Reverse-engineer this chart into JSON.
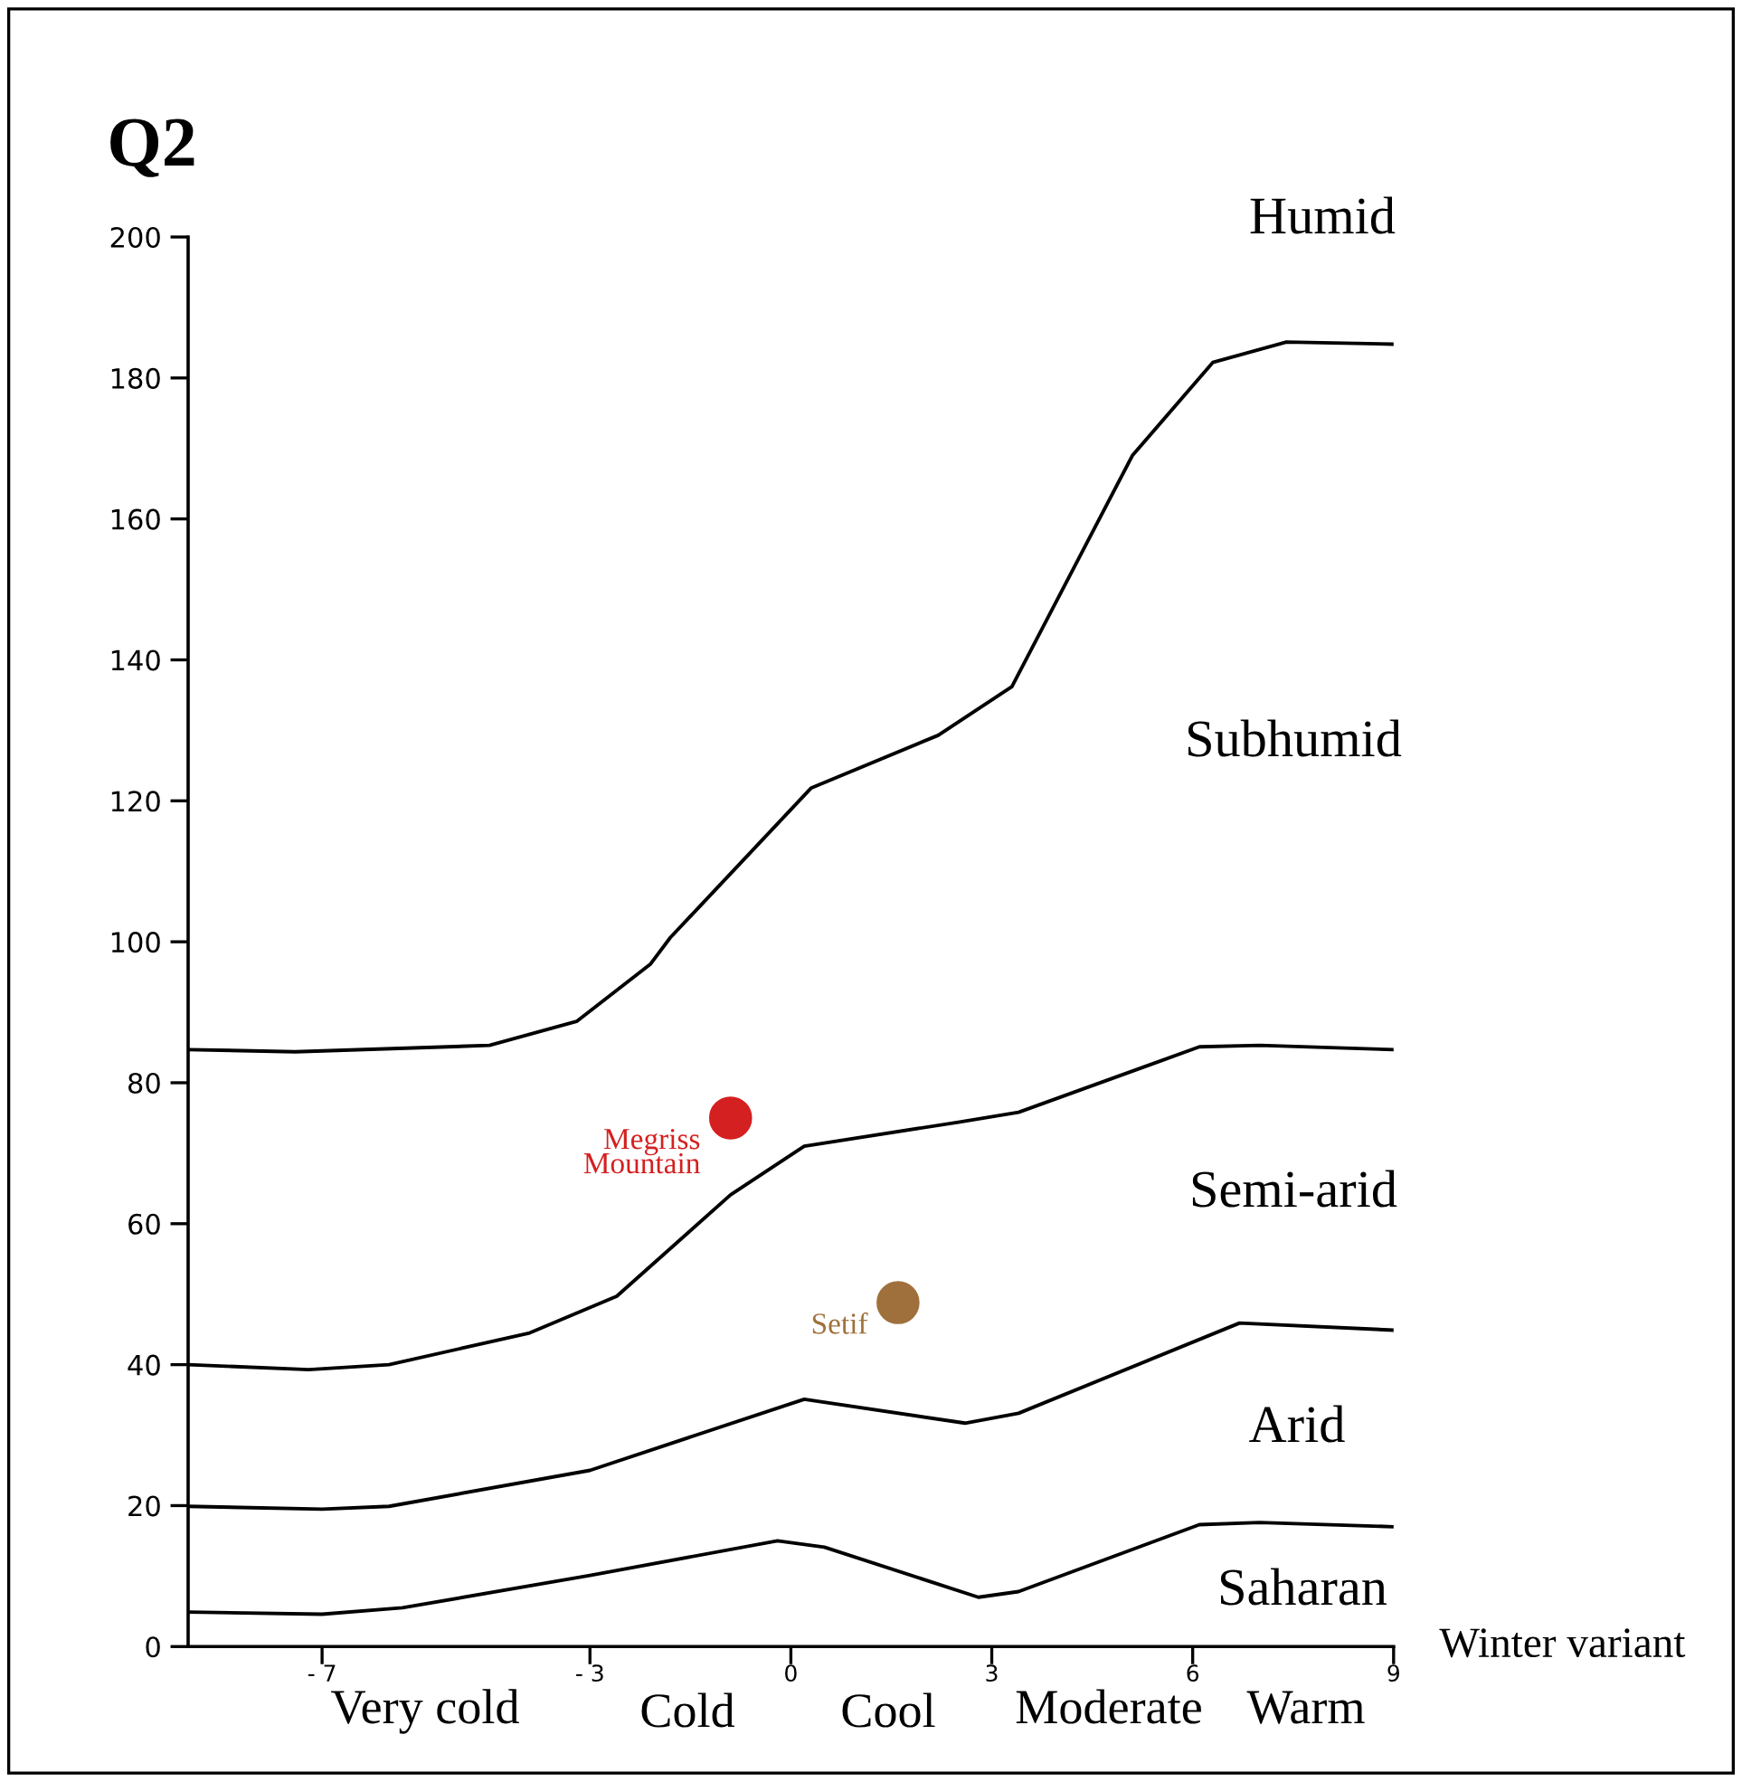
{
  "chart_data": {
    "type": "line",
    "ylabel": "Q2",
    "xlabel": "Winter variant",
    "xlim": [
      -9,
      9
    ],
    "xticks": [
      {
        "value": -7,
        "label": "- 7"
      },
      {
        "value": -3,
        "label": "- 3"
      },
      0,
      3,
      6,
      9
    ],
    "ylim": [
      0,
      200
    ],
    "yticks": [
      0,
      20,
      40,
      60,
      80,
      100,
      120,
      140,
      160,
      180,
      200
    ],
    "grid": false,
    "legend": false,
    "marker": "none",
    "line_style": "solid",
    "annotations": [
      "Humid",
      "Subhumid",
      "Semi-arid",
      "Arid",
      "Saharan",
      "Very cold",
      "Cold",
      "Cool",
      "Moderate",
      "Warm"
    ],
    "series": [
      {
        "color": "#000000",
        "x": [
          -9,
          -7.0,
          -5.8,
          -3,
          -0.2,
          0.5,
          2.8,
          3.4,
          6.1,
          7.0,
          9
        ],
        "values": [
          4.9,
          4.6,
          5.5,
          10.1,
          15.0,
          14.1,
          7.0,
          7.8,
          17.3,
          17.6,
          17.0
        ]
      },
      {
        "color": "#000000",
        "x": [
          -9,
          -7.0,
          -6,
          -3,
          0.2,
          2.6,
          3.4,
          6.7,
          9
        ],
        "values": [
          19.9,
          19.5,
          19.9,
          25.0,
          35.1,
          31.7,
          33.1,
          45.9,
          44.9
        ]
      },
      {
        "color": "#000000",
        "x": [
          -9,
          -7.2,
          -6,
          -3.9,
          -2.6,
          -0.9,
          0.2,
          2.5,
          3.4,
          6.1,
          7.0,
          9
        ],
        "values": [
          40,
          39.3,
          40,
          44.5,
          49.7,
          64.1,
          71,
          74.4,
          75.8,
          85.1,
          85.3,
          84.7
        ]
      },
      {
        "color": "#000000",
        "x": [
          -9,
          -7.4,
          -4.5,
          -3.2,
          -2.1,
          -1.8,
          0.3,
          2.2,
          3.3,
          5.1,
          6.3,
          7.4,
          9
        ],
        "values": [
          84.7,
          84.4,
          85.3,
          88.7,
          96.8,
          100.6,
          121.8,
          129.3,
          136.2,
          169,
          182.2,
          185.1,
          184.8
        ]
      },
      {
        "type": "scatter",
        "name": "Megriss Mountain",
        "marker": "circle",
        "color": "#d42020",
        "x": [
          -0.9
        ],
        "values": [
          75.0
        ]
      },
      {
        "type": "scatter",
        "name": "Setif",
        "marker": "circle",
        "color": "#a0703c",
        "x": [
          1.6
        ],
        "values": [
          48.8
        ]
      }
    ]
  }
}
